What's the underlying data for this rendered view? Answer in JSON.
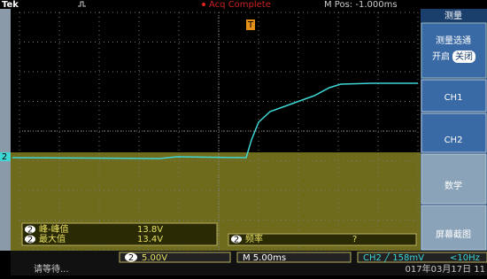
{
  "header": {
    "brand": "Tek",
    "status": "Acq Complete",
    "position": "M Pos: -1.000ms"
  },
  "menu": {
    "title": "测量",
    "gate_title": "测量选通",
    "gate_on": "开启",
    "gate_off": "关闭",
    "items": [
      "CH1",
      "CH2",
      "数学",
      "屏幕截图"
    ]
  },
  "channel_marker": "2",
  "trigger_marker": "T",
  "measurements": [
    {
      "channel": "2",
      "name": "峰-峰值",
      "value": "13.8V"
    },
    {
      "channel": "2",
      "name": "最大值",
      "value": "13.4V"
    },
    {
      "channel": "2",
      "name": "频率",
      "value": "?"
    }
  ],
  "status_bar": {
    "channel": "2",
    "scale": "5.00V",
    "timebase": "M 5.00ms",
    "trigger": "CH2 ╱ 158mV",
    "frequency": "<10Hz",
    "message": "请等待...",
    "datetime": "017年03月17日 11"
  }
}
